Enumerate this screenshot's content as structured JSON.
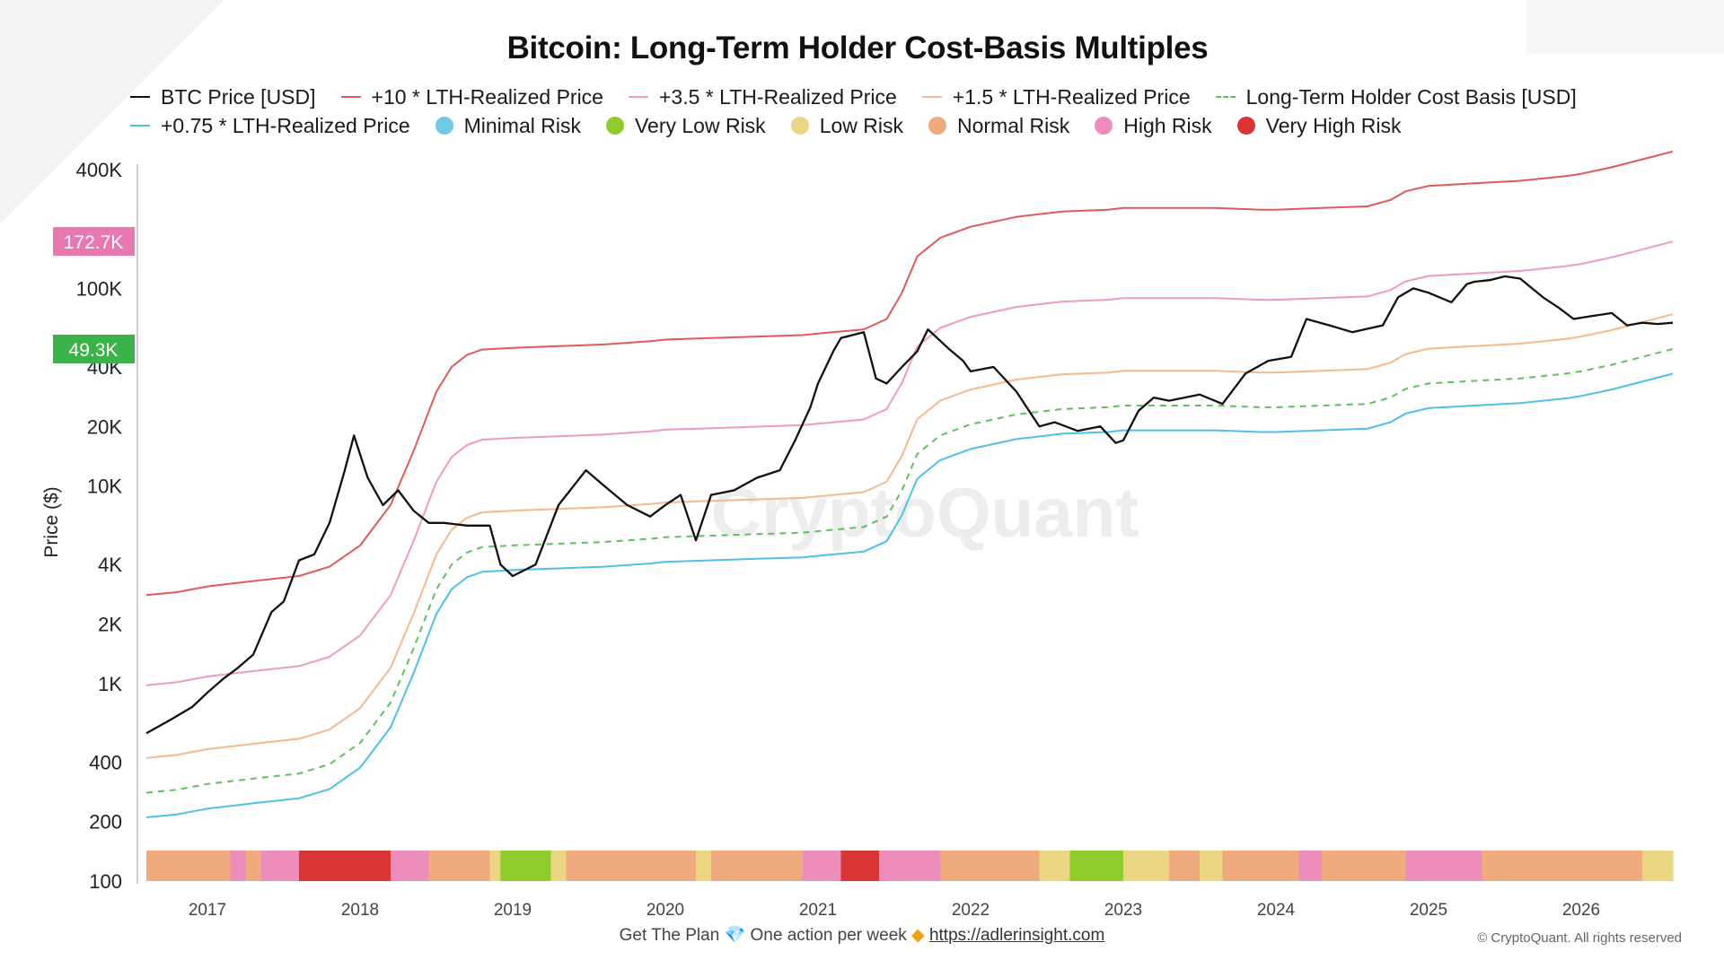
{
  "chart_data": {
    "type": "line",
    "title": "Bitcoin: Long-Term Holder Cost-Basis Multiples",
    "ylabel": "Price ($)",
    "yscale": "log",
    "ylim": [
      100,
      600000
    ],
    "xlim": [
      2016.6,
      2026.6
    ],
    "y_ticks": [
      {
        "label": "400K",
        "value": 400000
      },
      {
        "label": "100K",
        "value": 100000
      },
      {
        "label": "40K",
        "value": 40000
      },
      {
        "label": "20K",
        "value": 20000
      },
      {
        "label": "10K",
        "value": 10000
      },
      {
        "label": "4K",
        "value": 4000
      },
      {
        "label": "2K",
        "value": 2000
      },
      {
        "label": "1K",
        "value": 1000
      },
      {
        "label": "400",
        "value": 400
      },
      {
        "label": "200",
        "value": 200
      },
      {
        "label": "100",
        "value": 100
      }
    ],
    "x_ticks": [
      {
        "label": "2017",
        "value": 2017.0
      },
      {
        "label": "2018",
        "value": 2018.0
      },
      {
        "label": "2019",
        "value": 2019.0
      },
      {
        "label": "2020",
        "value": 2020.0
      },
      {
        "label": "2021",
        "value": 2021.0
      },
      {
        "label": "2022",
        "value": 2022.0
      },
      {
        "label": "2023",
        "value": 2023.0
      },
      {
        "label": "2024",
        "value": 2024.0
      },
      {
        "label": "2025",
        "value": 2025.0
      },
      {
        "label": "2026",
        "value": 2026.0
      }
    ],
    "markers": [
      {
        "label": "172.7K",
        "value": 172700,
        "color": "#e879b0"
      },
      {
        "label": "49.3K",
        "value": 49300,
        "color": "#3bb34a"
      }
    ],
    "lth_cost_basis": {
      "name": "Long-Term Holder Cost Basis [USD]",
      "x": [
        2016.6,
        2016.8,
        2017.0,
        2017.3,
        2017.6,
        2017.8,
        2018.0,
        2018.2,
        2018.35,
        2018.5,
        2018.6,
        2018.7,
        2018.8,
        2019.0,
        2019.3,
        2019.6,
        2019.9,
        2020.0,
        2020.3,
        2020.6,
        2020.9,
        2021.0,
        2021.3,
        2021.45,
        2021.55,
        2021.65,
        2021.8,
        2022.0,
        2022.3,
        2022.6,
        2022.9,
        2023.0,
        2023.3,
        2023.6,
        2023.9,
        2024.0,
        2024.3,
        2024.6,
        2024.75,
        2024.85,
        2025.0,
        2025.3,
        2025.6,
        2025.9,
        2026.0,
        2026.2,
        2026.45,
        2026.6
      ],
      "y": [
        280,
        290,
        310,
        330,
        350,
        390,
        500,
        800,
        1500,
        3000,
        4000,
        4600,
        4900,
        5000,
        5100,
        5200,
        5400,
        5500,
        5600,
        5700,
        5800,
        5900,
        6200,
        7000,
        9500,
        14500,
        18000,
        20500,
        23000,
        24500,
        25000,
        25500,
        25500,
        25500,
        25000,
        25000,
        25500,
        26000,
        28000,
        31000,
        33000,
        34000,
        35000,
        37000,
        38000,
        41000,
        46000,
        49300
      ]
    },
    "series": [
      {
        "name": "+10 * LTH-Realized Price",
        "color": "#e05a5a",
        "multiplier": 10
      },
      {
        "name": "+3.5 * LTH-Realized Price",
        "color": "#ef9ac6",
        "multiplier": 3.5
      },
      {
        "name": "+1.5 * LTH-Realized Price",
        "color": "#f5b98e",
        "multiplier": 1.5
      },
      {
        "name": "Long-Term Holder Cost Basis [USD]",
        "color": "#5cc25c",
        "multiplier": 1,
        "dashed": true
      },
      {
        "name": "+0.75 * LTH-Realized Price",
        "color": "#4fc0e8",
        "multiplier": 0.75
      },
      {
        "name": "BTC Price [USD]",
        "color": "#111111",
        "x": [
          2016.6,
          2016.75,
          2016.9,
          2017.0,
          2017.1,
          2017.2,
          2017.3,
          2017.42,
          2017.5,
          2017.6,
          2017.7,
          2017.8,
          2017.9,
          2017.96,
          2018.05,
          2018.15,
          2018.25,
          2018.35,
          2018.45,
          2018.55,
          2018.7,
          2018.85,
          2018.92,
          2019.0,
          2019.15,
          2019.3,
          2019.48,
          2019.6,
          2019.75,
          2019.9,
          2020.0,
          2020.1,
          2020.2,
          2020.3,
          2020.45,
          2020.6,
          2020.75,
          2020.85,
          2020.95,
          2021.0,
          2021.1,
          2021.15,
          2021.3,
          2021.38,
          2021.45,
          2021.55,
          2021.65,
          2021.72,
          2021.85,
          2021.95,
          2022.0,
          2022.15,
          2022.3,
          2022.45,
          2022.55,
          2022.7,
          2022.85,
          2022.95,
          2023.0,
          2023.1,
          2023.2,
          2023.3,
          2023.5,
          2023.65,
          2023.8,
          2023.95,
          2024.1,
          2024.2,
          2024.35,
          2024.5,
          2024.7,
          2024.8,
          2024.9,
          2025.0,
          2025.15,
          2025.25,
          2025.3,
          2025.4,
          2025.5,
          2025.6,
          2025.75,
          2025.85,
          2025.95,
          2026.05,
          2026.2,
          2026.3,
          2026.4,
          2026.5,
          2026.6
        ],
        "y": [
          560,
          650,
          760,
          900,
          1050,
          1200,
          1400,
          2300,
          2600,
          4200,
          4500,
          6500,
          12000,
          18000,
          11000,
          8000,
          9500,
          7500,
          6500,
          6500,
          6300,
          6300,
          4000,
          3500,
          4000,
          8000,
          12000,
          10000,
          8000,
          7000,
          8000,
          9000,
          5300,
          9000,
          9500,
          11000,
          12000,
          17000,
          25000,
          33000,
          48000,
          56000,
          60000,
          35000,
          33000,
          40000,
          48000,
          62000,
          50000,
          43000,
          38000,
          40000,
          30000,
          20000,
          21000,
          19000,
          20000,
          16500,
          17000,
          24000,
          28000,
          27000,
          29000,
          26000,
          37000,
          43000,
          45000,
          70000,
          65000,
          60000,
          65000,
          90000,
          100000,
          95000,
          85000,
          105000,
          108000,
          110000,
          115000,
          112000,
          90000,
          80000,
          70000,
          72000,
          75000,
          65000,
          67000,
          66000,
          67000
        ]
      }
    ],
    "risk_bands": {
      "colors": {
        "minimal": "#6ecbe8",
        "very_low": "#90cc2c",
        "low": "#ead683",
        "normal": "#efaa7d",
        "high": "#ec8dbc",
        "very_high": "#d93535"
      },
      "segments": [
        {
          "from": 2016.6,
          "to": 2017.15,
          "level": "normal"
        },
        {
          "from": 2017.15,
          "to": 2017.25,
          "level": "high"
        },
        {
          "from": 2017.25,
          "to": 2017.35,
          "level": "normal"
        },
        {
          "from": 2017.35,
          "to": 2017.6,
          "level": "high"
        },
        {
          "from": 2017.6,
          "to": 2018.2,
          "level": "very_high"
        },
        {
          "from": 2018.2,
          "to": 2018.45,
          "level": "high"
        },
        {
          "from": 2018.45,
          "to": 2018.85,
          "level": "normal"
        },
        {
          "from": 2018.85,
          "to": 2018.92,
          "level": "low"
        },
        {
          "from": 2018.92,
          "to": 2019.25,
          "level": "very_low"
        },
        {
          "from": 2019.25,
          "to": 2019.35,
          "level": "low"
        },
        {
          "from": 2019.35,
          "to": 2020.2,
          "level": "normal"
        },
        {
          "from": 2020.2,
          "to": 2020.3,
          "level": "low"
        },
        {
          "from": 2020.3,
          "to": 2020.9,
          "level": "normal"
        },
        {
          "from": 2020.9,
          "to": 2021.15,
          "level": "high"
        },
        {
          "from": 2021.15,
          "to": 2021.4,
          "level": "very_high"
        },
        {
          "from": 2021.4,
          "to": 2021.8,
          "level": "high"
        },
        {
          "from": 2021.8,
          "to": 2021.95,
          "level": "normal"
        },
        {
          "from": 2021.95,
          "to": 2022.45,
          "level": "normal"
        },
        {
          "from": 2022.45,
          "to": 2022.65,
          "level": "low"
        },
        {
          "from": 2022.65,
          "to": 2023.0,
          "level": "very_low"
        },
        {
          "from": 2023.0,
          "to": 2023.3,
          "level": "low"
        },
        {
          "from": 2023.3,
          "to": 2023.5,
          "level": "normal"
        },
        {
          "from": 2023.5,
          "to": 2023.65,
          "level": "low"
        },
        {
          "from": 2023.65,
          "to": 2024.15,
          "level": "normal"
        },
        {
          "from": 2024.15,
          "to": 2024.3,
          "level": "high"
        },
        {
          "from": 2024.3,
          "to": 2024.85,
          "level": "normal"
        },
        {
          "from": 2024.85,
          "to": 2025.15,
          "level": "high"
        },
        {
          "from": 2025.15,
          "to": 2025.35,
          "level": "high"
        },
        {
          "from": 2025.35,
          "to": 2026.4,
          "level": "normal"
        },
        {
          "from": 2026.4,
          "to": 2026.6,
          "level": "low"
        }
      ]
    },
    "watermark": "CryptoQuant"
  },
  "legend": {
    "row1": [
      {
        "label": "BTC Price [USD]",
        "type": "line",
        "color": "#111111"
      },
      {
        "label": "+10 * LTH-Realized Price",
        "type": "line",
        "color": "#e05a5a"
      },
      {
        "label": "+3.5 * LTH-Realized Price",
        "type": "line",
        "color": "#ef9ac6"
      },
      {
        "label": "+1.5 * LTH-Realized Price",
        "type": "line",
        "color": "#f5b98e"
      },
      {
        "label": "Long-Term Holder Cost Basis [USD]",
        "type": "dash",
        "color": "#5cc25c"
      }
    ],
    "row2": [
      {
        "label": "+0.75 * LTH-Realized Price",
        "type": "line",
        "color": "#4fc0e8"
      },
      {
        "label": "Minimal Risk",
        "type": "dot",
        "color": "#6ecbe8"
      },
      {
        "label": "Very Low Risk",
        "type": "dot",
        "color": "#90cc2c"
      },
      {
        "label": "Low Risk",
        "type": "dot",
        "color": "#ead683"
      },
      {
        "label": "Normal Risk",
        "type": "dot",
        "color": "#efaa7d"
      },
      {
        "label": "High Risk",
        "type": "dot",
        "color": "#ec8dbc"
      },
      {
        "label": "Very High Risk",
        "type": "dot",
        "color": "#d93535"
      }
    ]
  },
  "footer": {
    "plan": "Get The Plan",
    "gem": "💎",
    "action": "One action per week",
    "diamond": "◆",
    "link": "https://adlerinsight.com",
    "copyright": "© CryptoQuant. All rights reserved"
  }
}
